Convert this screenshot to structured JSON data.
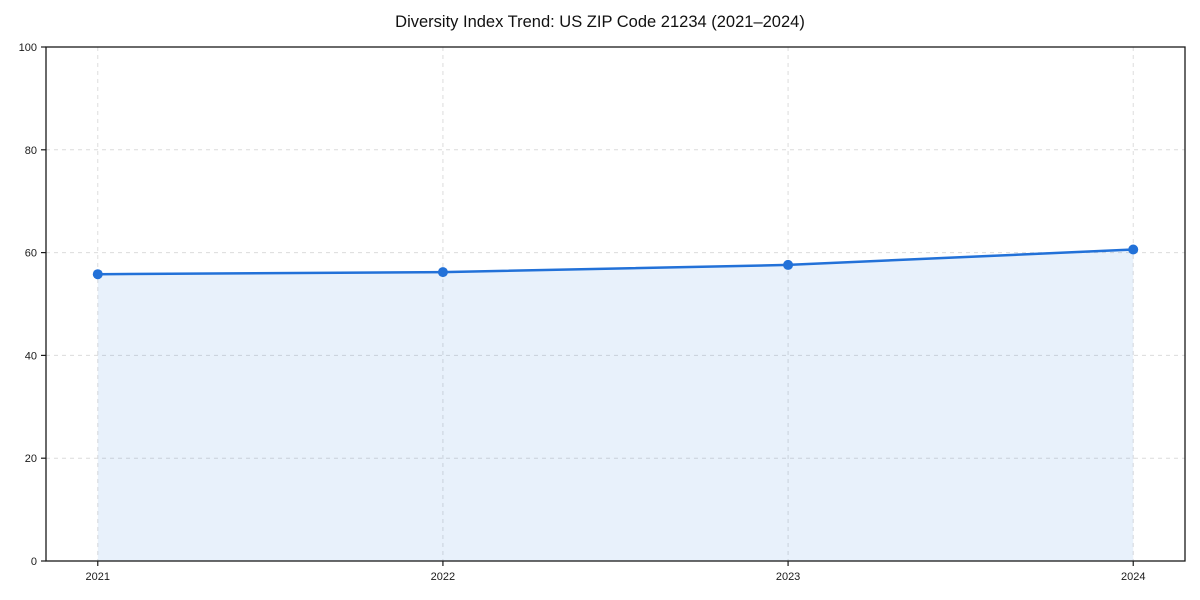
{
  "title": "Diversity Index Trend: US ZIP Code 21234 (2021–2024)",
  "colors": {
    "line": "#2271d8",
    "fill": "#2271d8",
    "fill_opacity": 0.1,
    "grid": "#dcdcdc",
    "axis": "#1a1a1a",
    "tick_text": "#1a1a1a",
    "background": "#ffffff"
  },
  "chart_data": {
    "type": "area",
    "title": "Diversity Index Trend: US ZIP Code 21234 (2021–2024)",
    "x": [
      2021,
      2022,
      2023,
      2024
    ],
    "categories": [
      "2021",
      "2022",
      "2023",
      "2024"
    ],
    "series": [
      {
        "name": "Diversity Index",
        "values": [
          55.8,
          56.2,
          57.6,
          60.6
        ]
      }
    ],
    "xlabel": "",
    "ylabel": "",
    "ylim": [
      0,
      100
    ],
    "xlim": [
      2020.85,
      2024.15
    ],
    "yticks": [
      0,
      20,
      40,
      60,
      80,
      100
    ],
    "grid": true,
    "grid_style": "dashed",
    "legend": "none",
    "marker": "circle"
  }
}
